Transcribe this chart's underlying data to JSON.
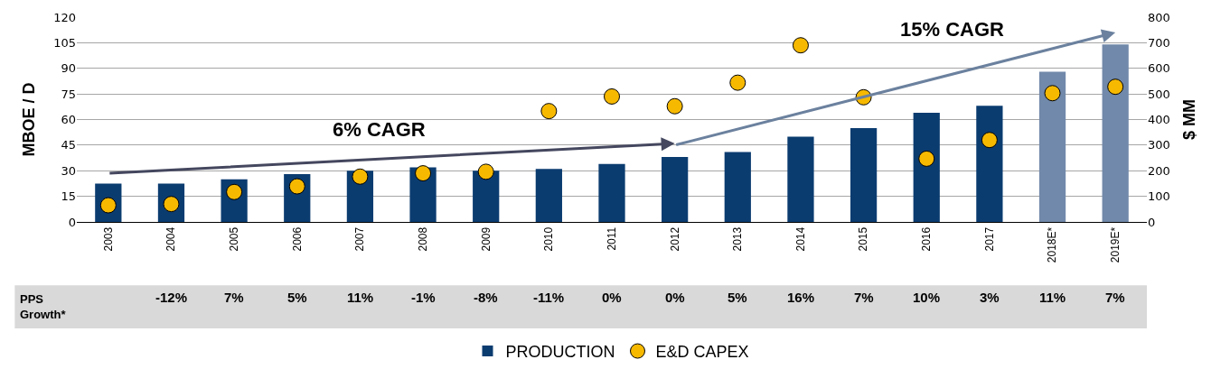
{
  "chart_data": {
    "type": "bar",
    "ylabel": "MBOE / D",
    "y2label": "$ MM",
    "categories": [
      "2003",
      "2004",
      "2005",
      "2006",
      "2007",
      "2008",
      "2009",
      "2010",
      "2011",
      "2012",
      "2013",
      "2014",
      "2015",
      "2016",
      "2017",
      "2018E*",
      "2019E*"
    ],
    "series": [
      {
        "name": "PRODUCTION",
        "color": "#0b3c70",
        "colors": [
          "#0b3c70",
          "#0b3c70",
          "#0b3c70",
          "#0b3c70",
          "#0b3c70",
          "#0b3c70",
          "#0b3c70",
          "#0b3c70",
          "#0b3c70",
          "#0b3c70",
          "#0b3c70",
          "#0b3c70",
          "#0b3c70",
          "#0b3c70",
          "#0b3c70",
          "#7189aa",
          "#7189aa"
        ],
        "values": [
          22.5,
          22.5,
          25,
          28,
          30,
          32,
          30,
          31,
          34,
          38,
          41,
          50,
          55,
          64,
          68,
          88,
          104
        ]
      },
      {
        "name": "E&D CAPEX",
        "type": "scatter",
        "axis": "y2",
        "color": "#f7b900",
        "marker": "circle",
        "values": [
          65,
          70,
          117,
          139,
          177,
          190,
          196,
          433,
          490,
          452,
          544,
          690,
          487,
          247,
          320,
          503,
          528
        ]
      }
    ],
    "ylim": [
      0,
      120
    ],
    "yticks": [
      0,
      15,
      30,
      45,
      60,
      75,
      90,
      105,
      120
    ],
    "y2lim": [
      0,
      800
    ],
    "y2ticks": [
      0,
      100,
      200,
      300,
      400,
      500,
      600,
      700,
      800
    ],
    "grid": "y",
    "legend": "bottom",
    "annotations": [
      "6% CAGR",
      "15% CAGR",
      "PPS\nGrowth*",
      "-12%",
      "7%",
      "5%",
      "11%",
      "-1%",
      "-8%",
      "-11%",
      "0%",
      "0%",
      "5%",
      "16%",
      "7%",
      "10%",
      "3%",
      "11%",
      "7%"
    ]
  }
}
